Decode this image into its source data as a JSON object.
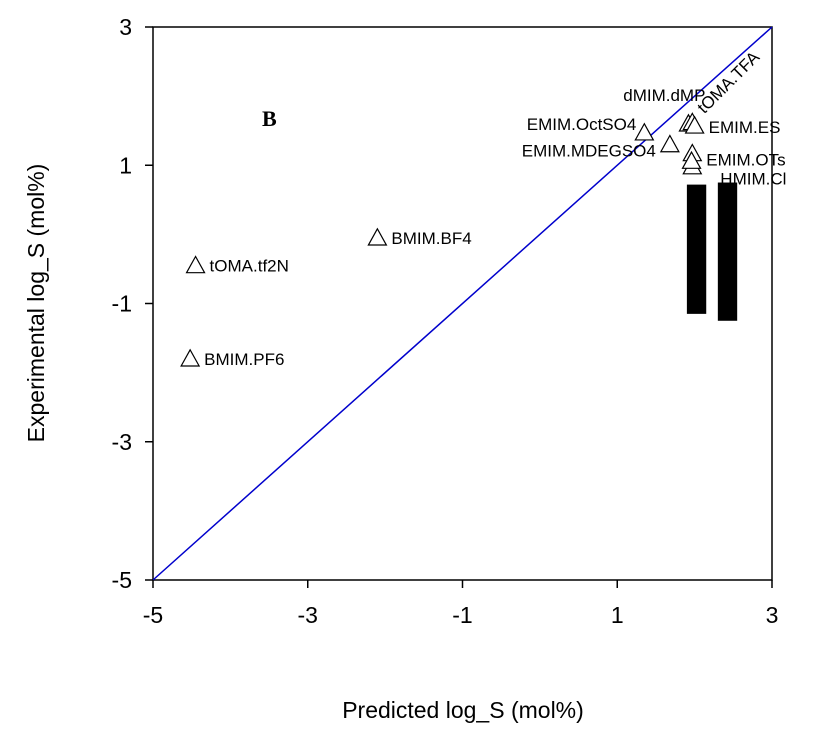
{
  "chart_data": {
    "type": "scatter",
    "panel_label": "B",
    "xlabel": "Predicted log_S (mol%)",
    "ylabel": "Experimental log_S (mol%)",
    "xlim": [
      -5,
      3
    ],
    "ylim": [
      -5,
      3
    ],
    "xticks": [
      "-5",
      "-3",
      "-1",
      "1",
      "3"
    ],
    "yticks": [
      "-5",
      "-3",
      "-1",
      "1",
      "3"
    ],
    "reference_line": {
      "from": [
        -5,
        -5
      ],
      "to": [
        3,
        3
      ],
      "color": "#0000cc"
    },
    "marker": "open-triangle",
    "points": [
      {
        "label": "tOMA.tf2N",
        "x": -4.45,
        "y": -0.45
      },
      {
        "label": "BMIM.PF6",
        "x": -4.52,
        "y": -1.8
      },
      {
        "label": "BMIM.BF4",
        "x": -2.1,
        "y": -0.05
      },
      {
        "label": "EMIM.OctSO4",
        "x": 1.35,
        "y": 1.47
      },
      {
        "label": "EMIM.MDEGSO4",
        "x": 1.68,
        "y": 1.3
      },
      {
        "label": "dMIM.dMP",
        "x": 1.92,
        "y": 1.6
      },
      {
        "label": "tOMA.TFA",
        "x": 1.97,
        "y": 1.62
      },
      {
        "label": "EMIM.ES",
        "x": 2.0,
        "y": 1.57
      },
      {
        "label": "EMIM.OTs",
        "x": 1.97,
        "y": 1.17
      },
      {
        "label": "HMIM.Cl",
        "x": 1.97,
        "y": 0.98
      },
      {
        "label": "",
        "x": 1.96,
        "y": 1.06
      }
    ],
    "filled_bars": [
      {
        "x_from": 1.9,
        "x_to": 2.15,
        "y_from": -1.15,
        "y_to": 0.72
      },
      {
        "x_from": 2.3,
        "x_to": 2.55,
        "y_from": -1.25,
        "y_to": 0.75
      }
    ]
  }
}
